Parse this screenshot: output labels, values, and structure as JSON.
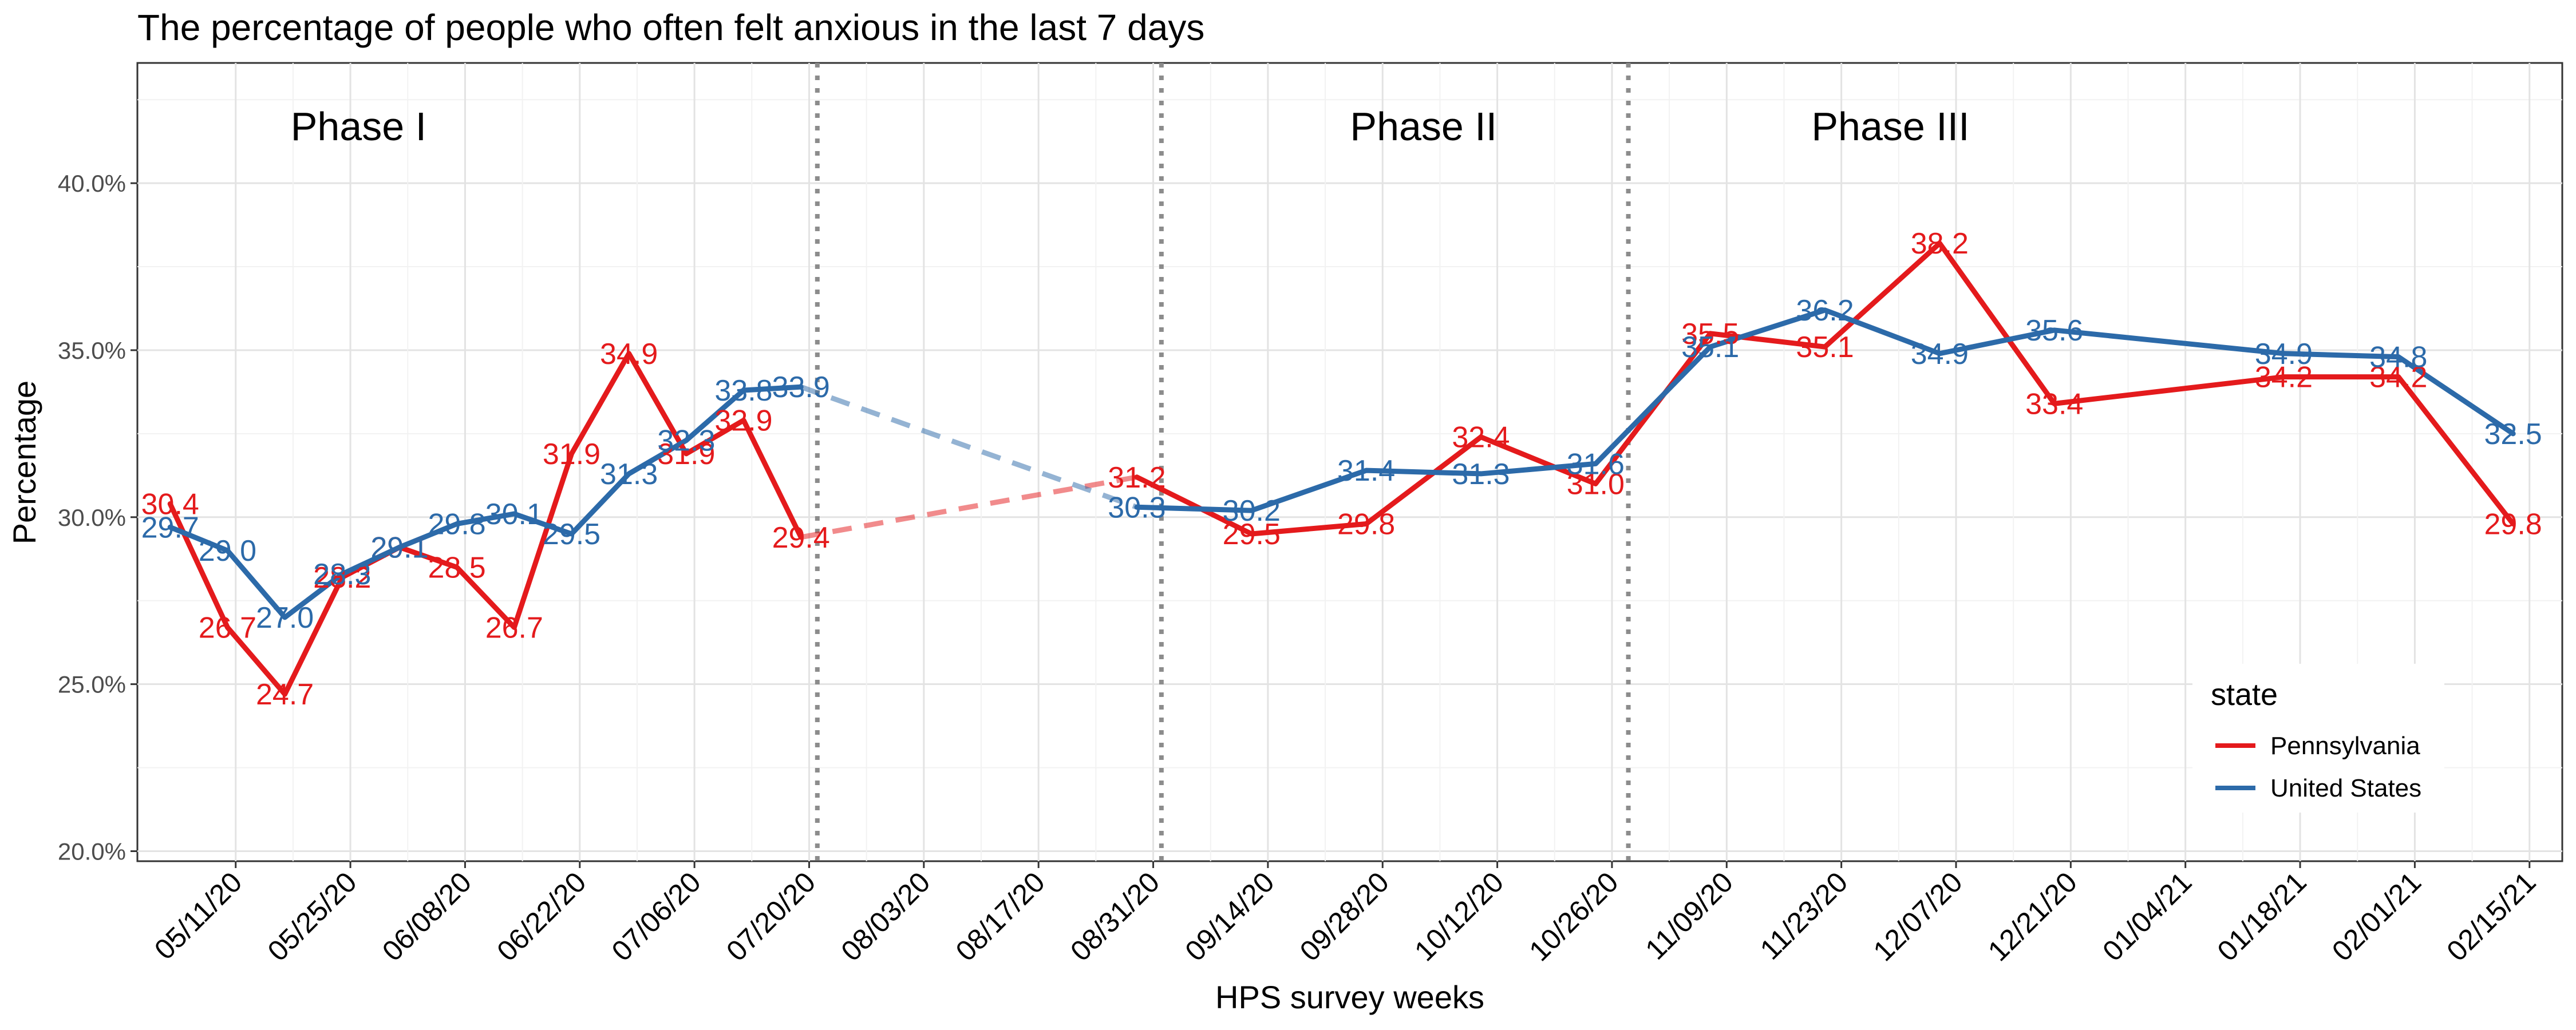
{
  "chart_data": {
    "type": "line",
    "title": "The percentage of people who often felt anxious in the last 7 days",
    "xlabel": "HPS survey weeks",
    "ylabel": "Percentage",
    "ylim": [
      19.7,
      43.6
    ],
    "y_ticks": [
      {
        "value": 20,
        "label": "20.0%"
      },
      {
        "value": 25,
        "label": "25.0%"
      },
      {
        "value": 30,
        "label": "30.0%"
      },
      {
        "value": 35,
        "label": "35.0%"
      },
      {
        "value": 40,
        "label": "40.0%"
      }
    ],
    "x_ticks": [
      "05/11/20",
      "05/25/20",
      "06/08/20",
      "06/22/20",
      "07/06/20",
      "07/20/20",
      "08/03/20",
      "08/17/20",
      "08/31/20",
      "09/14/20",
      "09/28/20",
      "10/12/20",
      "10/26/20",
      "11/09/20",
      "11/23/20",
      "12/07/20",
      "12/21/20",
      "01/04/21",
      "01/18/21",
      "02/01/21",
      "02/15/21"
    ],
    "x_range": [
      "2020-04-29",
      "2021-02-19"
    ],
    "grid": true,
    "phases": [
      {
        "label": "Phase I",
        "label_date": "2020-05-26"
      },
      {
        "label": "Phase II",
        "label_date": "2020-10-03"
      },
      {
        "label": "Phase III",
        "label_date": "2020-11-29"
      }
    ],
    "phase_boundaries": [
      "2020-07-21",
      "2020-09-01",
      "2020-10-28"
    ],
    "legend": {
      "title": "state",
      "placement": "bottom-right"
    },
    "series": [
      {
        "name": "Pennsylvania",
        "color": "#e41a1c",
        "points": [
          {
            "x": "2020-05-03",
            "y": 30.4,
            "label": "30.4"
          },
          {
            "x": "2020-05-10",
            "y": 26.7,
            "label": "26.7"
          },
          {
            "x": "2020-05-17",
            "y": 24.7,
            "label": "24.7"
          },
          {
            "x": "2020-05-24",
            "y": 28.2,
            "label": "28.2"
          },
          {
            "x": "2020-05-31",
            "y": 29.1,
            "label": "29.1"
          },
          {
            "x": "2020-06-07",
            "y": 28.5,
            "label": "28.5"
          },
          {
            "x": "2020-06-14",
            "y": 26.7,
            "label": "26.7"
          },
          {
            "x": "2020-06-21",
            "y": 31.9,
            "label": "31.9"
          },
          {
            "x": "2020-06-28",
            "y": 34.9,
            "label": "34.9"
          },
          {
            "x": "2020-07-05",
            "y": 31.9,
            "label": "31.9"
          },
          {
            "x": "2020-07-12",
            "y": 32.9,
            "label": "32.9"
          },
          {
            "x": "2020-07-19",
            "y": 29.4,
            "label": "29.4"
          },
          {
            "x": "2020-08-29",
            "y": 31.2,
            "label": "31.2"
          },
          {
            "x": "2020-09-12",
            "y": 29.5,
            "label": "29.5"
          },
          {
            "x": "2020-09-26",
            "y": 29.8,
            "label": "29.8"
          },
          {
            "x": "2020-10-10",
            "y": 32.4,
            "label": "32.4"
          },
          {
            "x": "2020-10-24",
            "y": 31.0,
            "label": "31.0"
          },
          {
            "x": "2020-11-07",
            "y": 35.5,
            "label": "35.5"
          },
          {
            "x": "2020-11-21",
            "y": 35.1,
            "label": "35.1"
          },
          {
            "x": "2020-12-05",
            "y": 38.2,
            "label": "38.2"
          },
          {
            "x": "2020-12-19",
            "y": 33.4,
            "label": "33.4"
          },
          {
            "x": "2021-01-16",
            "y": 34.2,
            "label": "34.2"
          },
          {
            "x": "2021-01-30",
            "y": 34.2,
            "label": "34.2"
          },
          {
            "x": "2021-02-13",
            "y": 29.8,
            "label": "29.8"
          }
        ]
      },
      {
        "name": "United States",
        "color": "#2c6aa9",
        "points": [
          {
            "x": "2020-05-03",
            "y": 29.7,
            "label": "29.7"
          },
          {
            "x": "2020-05-10",
            "y": 29.0,
            "label": "29.0"
          },
          {
            "x": "2020-05-17",
            "y": 27.0,
            "label": "27.0"
          },
          {
            "x": "2020-05-24",
            "y": 28.3,
            "label": "28.3"
          },
          {
            "x": "2020-05-31",
            "y": 29.1,
            "label": "29.1"
          },
          {
            "x": "2020-06-07",
            "y": 29.8,
            "label": "29.8"
          },
          {
            "x": "2020-06-14",
            "y": 30.1,
            "label": "30.1"
          },
          {
            "x": "2020-06-21",
            "y": 29.5,
            "label": "29.5"
          },
          {
            "x": "2020-06-28",
            "y": 31.3,
            "label": "31.3"
          },
          {
            "x": "2020-07-05",
            "y": 32.3,
            "label": "32.3"
          },
          {
            "x": "2020-07-12",
            "y": 33.8,
            "label": "33.8"
          },
          {
            "x": "2020-07-19",
            "y": 33.9,
            "label": "33.9"
          },
          {
            "x": "2020-08-29",
            "y": 30.3,
            "label": "30.3"
          },
          {
            "x": "2020-09-12",
            "y": 30.2,
            "label": "30.2"
          },
          {
            "x": "2020-09-26",
            "y": 31.4,
            "label": "31.4"
          },
          {
            "x": "2020-10-10",
            "y": 31.3,
            "label": "31.3"
          },
          {
            "x": "2020-10-24",
            "y": 31.6,
            "label": "31.6"
          },
          {
            "x": "2020-11-07",
            "y": 35.1,
            "label": "35.1"
          },
          {
            "x": "2020-11-21",
            "y": 36.2,
            "label": "36.2"
          },
          {
            "x": "2020-12-05",
            "y": 34.9,
            "label": "34.9"
          },
          {
            "x": "2020-12-19",
            "y": 35.6,
            "label": "35.6"
          },
          {
            "x": "2021-01-16",
            "y": 34.9,
            "label": "34.9"
          },
          {
            "x": "2021-01-30",
            "y": 34.8,
            "label": "34.8"
          },
          {
            "x": "2021-02-13",
            "y": 32.5,
            "label": "32.5"
          }
        ]
      }
    ],
    "gap_segments": [
      {
        "series": "Pennsylvania",
        "from": "2020-07-19",
        "to": "2020-08-29",
        "style": "dashed"
      },
      {
        "series": "United States",
        "from": "2020-07-19",
        "to": "2020-08-29",
        "style": "dashed"
      }
    ]
  }
}
